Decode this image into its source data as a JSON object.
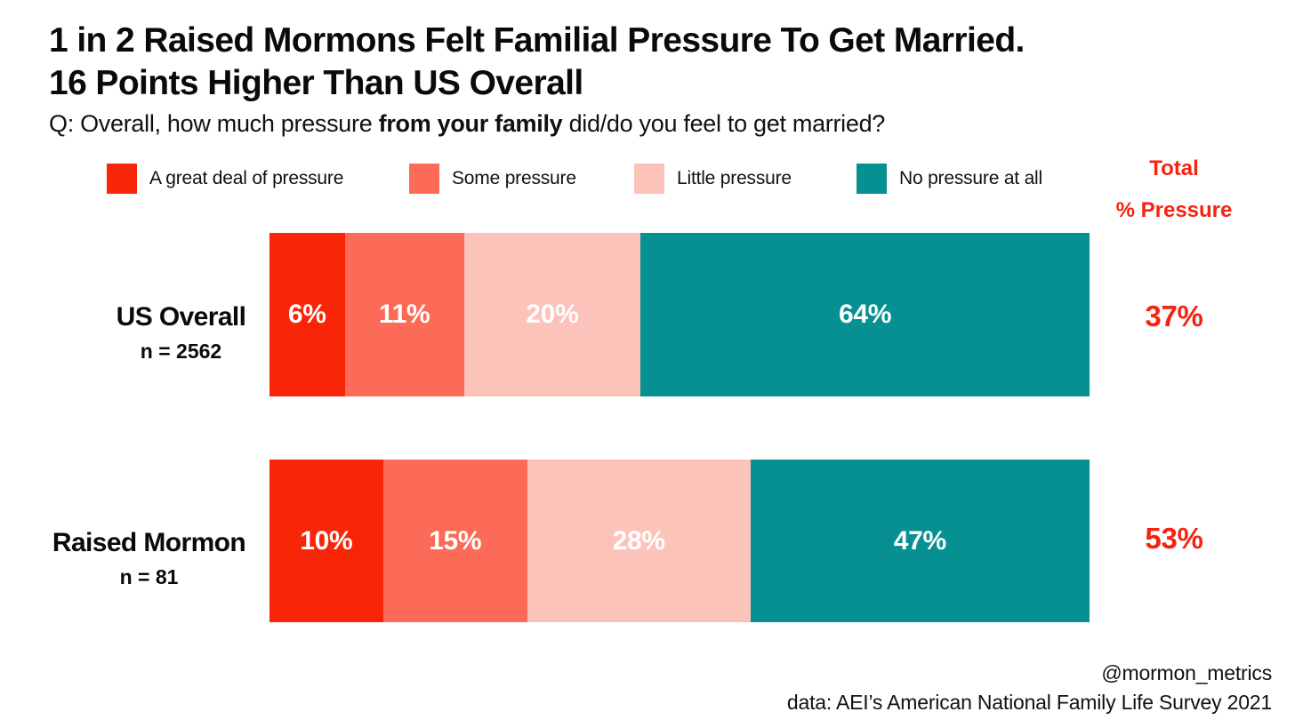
{
  "title": {
    "line1": "1 in 2 Raised Mormons Felt Familial Pressure To Get Married.",
    "line2": "16 Points Higher Than US Overall"
  },
  "subtitle": {
    "prefix": "Q: Overall, how much pressure ",
    "emphasis": "from your family",
    "suffix": " did/do you feel to get married?"
  },
  "colors": {
    "great_deal": "#F92508",
    "some": "#FB6B57",
    "little": "#FCC3BA",
    "none": "#079091",
    "accent_red_text": "#F52310",
    "text_black": "#0a0a0a",
    "background": "#ffffff",
    "bar_label_white": "#ffffff"
  },
  "totals_header": {
    "line1": "Total",
    "line2": "% Pressure"
  },
  "chart_data": {
    "type": "bar",
    "variant": "horizontal-stacked-percentage",
    "title": "1 in 2 Raised Mormons Felt Familial Pressure To Get Married. 16 Points Higher Than US Overall",
    "question": "Q: Overall, how much pressure from your family did/do you feel to get married?",
    "legend_position": "top",
    "grid": false,
    "categories": [
      "US Overall",
      "Raised Mormon"
    ],
    "sample_sizes": [
      "n = 2562",
      "n = 81"
    ],
    "series": [
      {
        "name": "A great deal of pressure",
        "color": "#F92508",
        "values": [
          6,
          10
        ],
        "display": [
          "6%",
          "10%"
        ]
      },
      {
        "name": "Some pressure",
        "color": "#FB6B57",
        "values": [
          11,
          15
        ],
        "display": [
          "11%",
          "15%"
        ]
      },
      {
        "name": "Little pressure",
        "color": "#FCC3BA",
        "values": [
          20,
          28
        ],
        "display": [
          "20%",
          "28%"
        ]
      },
      {
        "name": "No pressure at all",
        "color": "#079091",
        "values": [
          64,
          47
        ],
        "display": [
          "64%",
          "47%"
        ]
      }
    ],
    "totals": {
      "label": "Total % Pressure",
      "values": [
        37,
        53
      ],
      "display": [
        "37%",
        "53%"
      ]
    }
  },
  "rows": [
    {
      "label": "US Overall",
      "n": "n = 2562",
      "total": "37%"
    },
    {
      "label": "Raised Mormon",
      "n": "n = 81",
      "total": "53%"
    }
  ],
  "legend": {
    "items": [
      {
        "label": "A great deal of pressure",
        "color": "#F92508"
      },
      {
        "label": "Some pressure",
        "color": "#FB6B57"
      },
      {
        "label": "Little pressure",
        "color": "#FCC3BA"
      },
      {
        "label": "No pressure at all",
        "color": "#079091"
      }
    ]
  },
  "footer": {
    "handle": "@mormon_metrics",
    "source": "data: AEI’s American National Family Life Survey 2021"
  }
}
